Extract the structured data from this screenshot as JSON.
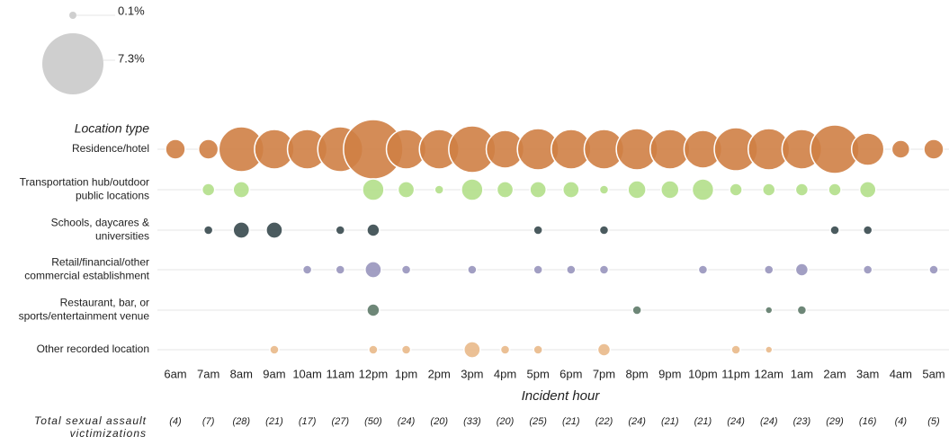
{
  "chart_data": {
    "type": "bubble",
    "size_legend": [
      {
        "value": 0.1,
        "label": "0.1%"
      },
      {
        "value": 7.3,
        "label": "7.3%"
      }
    ],
    "y_axis_title": "Location type",
    "x_axis_title": "Incident hour",
    "totals_title": [
      "Total sexual assault",
      "victimizations"
    ],
    "categories": [
      "6am",
      "7am",
      "8am",
      "9am",
      "10am",
      "11am",
      "12pm",
      "1pm",
      "2pm",
      "3pm",
      "4pm",
      "5pm",
      "6pm",
      "7pm",
      "8pm",
      "9pm",
      "10pm",
      "11pm",
      "12am",
      "1am",
      "2am",
      "3am",
      "4am",
      "5am"
    ],
    "totals": [
      "(4)",
      "(7)",
      "(28)",
      "(21)",
      "(17)",
      "(27)",
      "(50)",
      "(24)",
      "(20)",
      "(33)",
      "(20)",
      "(25)",
      "(21)",
      "(22)",
      "(24)",
      "(21)",
      "(21)",
      "(24)",
      "(24)",
      "(23)",
      "(29)",
      "(16)",
      "(4)",
      "(5)"
    ],
    "series": [
      {
        "name": [
          "Residence/hotel"
        ],
        "color": "#cf7f45",
        "values": [
          0.76,
          0.76,
          3.95,
          3.06,
          3.06,
          3.95,
          6.9,
          3.06,
          3.06,
          4.27,
          2.78,
          3.34,
          3.06,
          3.06,
          3.34,
          3.06,
          2.78,
          3.64,
          3.34,
          3.06,
          4.6,
          2.05,
          0.63,
          0.76
        ]
      },
      {
        "name": [
          "Transportation hub/outdoor",
          "public locations"
        ],
        "color": "#b3df8a",
        "values": [
          null,
          0.31,
          0.52,
          null,
          null,
          null,
          0.91,
          0.52,
          0.16,
          0.91,
          0.52,
          0.52,
          0.52,
          0.16,
          0.63,
          0.63,
          0.91,
          0.31,
          0.31,
          0.31,
          0.31,
          0.52,
          null,
          null
        ]
      },
      {
        "name": [
          "Schools, daycares &",
          "universities"
        ],
        "color": "#37494e",
        "values": [
          null,
          0.16,
          0.52,
          0.52,
          null,
          0.16,
          0.31,
          null,
          null,
          null,
          null,
          0.16,
          null,
          0.16,
          null,
          null,
          null,
          null,
          null,
          null,
          0.16,
          0.16,
          null,
          null
        ]
      },
      {
        "name": [
          "Retail/financial/other",
          "commercial establishment"
        ],
        "color": "#9895bc",
        "values": [
          null,
          null,
          null,
          null,
          0.16,
          0.16,
          0.52,
          0.16,
          null,
          0.16,
          null,
          0.16,
          0.16,
          0.16,
          null,
          null,
          0.16,
          null,
          0.16,
          0.31,
          null,
          0.16,
          null,
          0.16
        ]
      },
      {
        "name": [
          "Restaurant, bar, or",
          "sports/entertainment venue"
        ],
        "color": "#5e7a69",
        "values": [
          null,
          null,
          null,
          null,
          null,
          null,
          0.31,
          null,
          null,
          null,
          null,
          null,
          null,
          null,
          0.16,
          null,
          null,
          null,
          0.1,
          0.16,
          null,
          null,
          null,
          null
        ]
      },
      {
        "name": [
          "Other recorded location"
        ],
        "color": "#e9b98a",
        "values": [
          null,
          null,
          null,
          0.16,
          null,
          null,
          0.16,
          0.16,
          null,
          0.52,
          0.16,
          0.16,
          null,
          0.31,
          null,
          null,
          null,
          0.16,
          0.1,
          null,
          null,
          null,
          null,
          null
        ]
      }
    ]
  }
}
